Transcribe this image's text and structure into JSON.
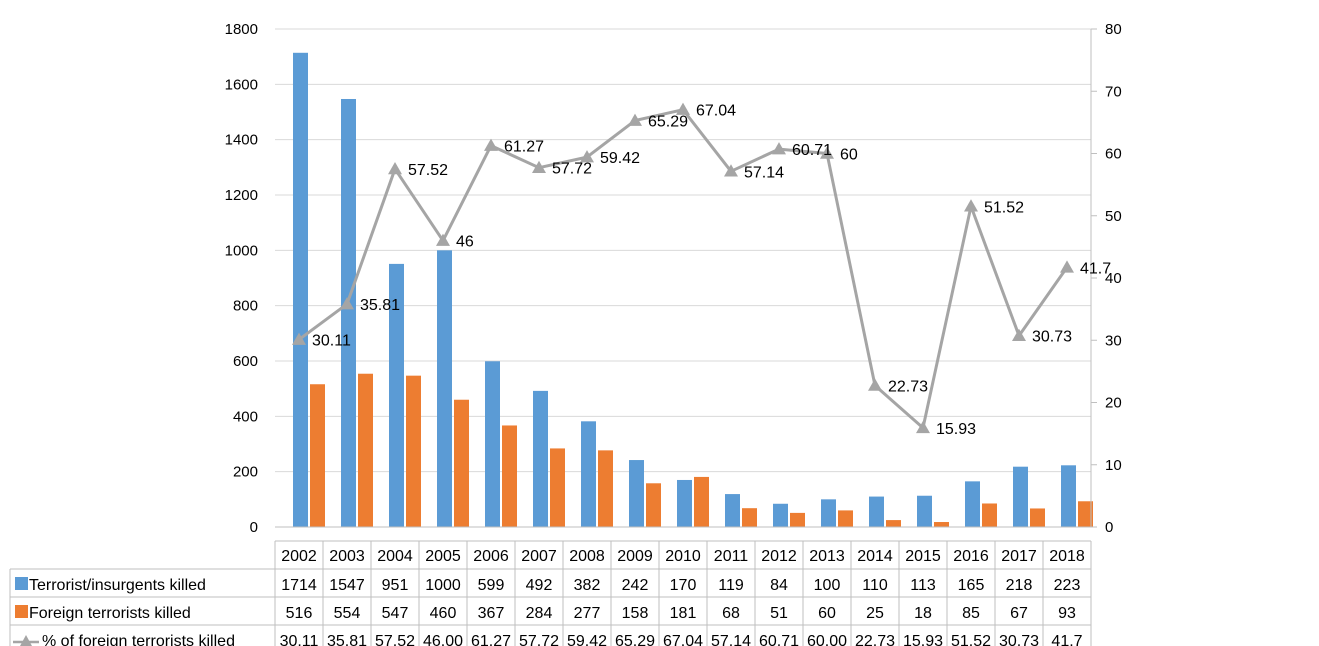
{
  "chart_data": {
    "type": "bar",
    "title": "",
    "xlabel": "",
    "ylabel": "",
    "ylim": [
      0,
      1800
    ],
    "y2lim": [
      0,
      80
    ],
    "yticks": [
      0,
      200,
      400,
      600,
      800,
      1000,
      1200,
      1400,
      1600,
      1800
    ],
    "y2ticks": [
      0,
      10,
      20,
      30,
      40,
      50,
      60,
      70,
      80
    ],
    "grid": true,
    "legend": "data table below chart",
    "categories": [
      "2002",
      "2003",
      "2004",
      "2005",
      "2006",
      "2007",
      "2008",
      "2009",
      "2010",
      "2011",
      "2012",
      "2013",
      "2014",
      "2015",
      "2016",
      "2017",
      "2018"
    ],
    "series": [
      {
        "name": "Terrorist/insurgents killed",
        "kind": "bar",
        "axis": "left",
        "color": "#5b9bd5",
        "values": [
          1714,
          1547,
          951,
          1000,
          599,
          492,
          382,
          242,
          170,
          119,
          84,
          100,
          110,
          113,
          165,
          218,
          223
        ],
        "table_values": [
          "1714",
          "1547",
          "951",
          "1000",
          "599",
          "492",
          "382",
          "242",
          "170",
          "119",
          "84",
          "100",
          "110",
          "113",
          "165",
          "218",
          "223"
        ]
      },
      {
        "name": "Foreign terrorists killed",
        "kind": "bar",
        "axis": "left",
        "color": "#ed7d31",
        "values": [
          516,
          554,
          547,
          460,
          367,
          284,
          277,
          158,
          181,
          68,
          51,
          60,
          25,
          18,
          85,
          67,
          93
        ],
        "table_values": [
          "516",
          "554",
          "547",
          "460",
          "367",
          "284",
          "277",
          "158",
          "181",
          "68",
          "51",
          "60",
          "25",
          "18",
          "85",
          "67",
          "93"
        ]
      },
      {
        "name": "% of foreign terrorists killed",
        "kind": "line",
        "axis": "right",
        "marker": "triangle",
        "color": "#a5a5a5",
        "values": [
          30.11,
          35.81,
          57.52,
          46,
          61.27,
          57.72,
          59.42,
          65.29,
          67.04,
          57.14,
          60.71,
          60,
          22.73,
          15.93,
          51.52,
          30.73,
          41.7
        ],
        "data_labels": [
          "30.11",
          "35.81",
          "57.52",
          "46",
          "61.27",
          "57.72",
          "59.42",
          "65.29",
          "67.04",
          "57.14",
          "60.71",
          "60",
          "22.73",
          "15.93",
          "51.52",
          "30.73",
          "41.7"
        ],
        "table_values": [
          "30.11",
          "35.81",
          "57.52",
          "46.00",
          "61.27",
          "57.72",
          "59.42",
          "65.29",
          "67.04",
          "57.14",
          "60.71",
          "60.00",
          "22.73",
          "15.93",
          "51.52",
          "30.73",
          "41.7"
        ]
      }
    ]
  }
}
